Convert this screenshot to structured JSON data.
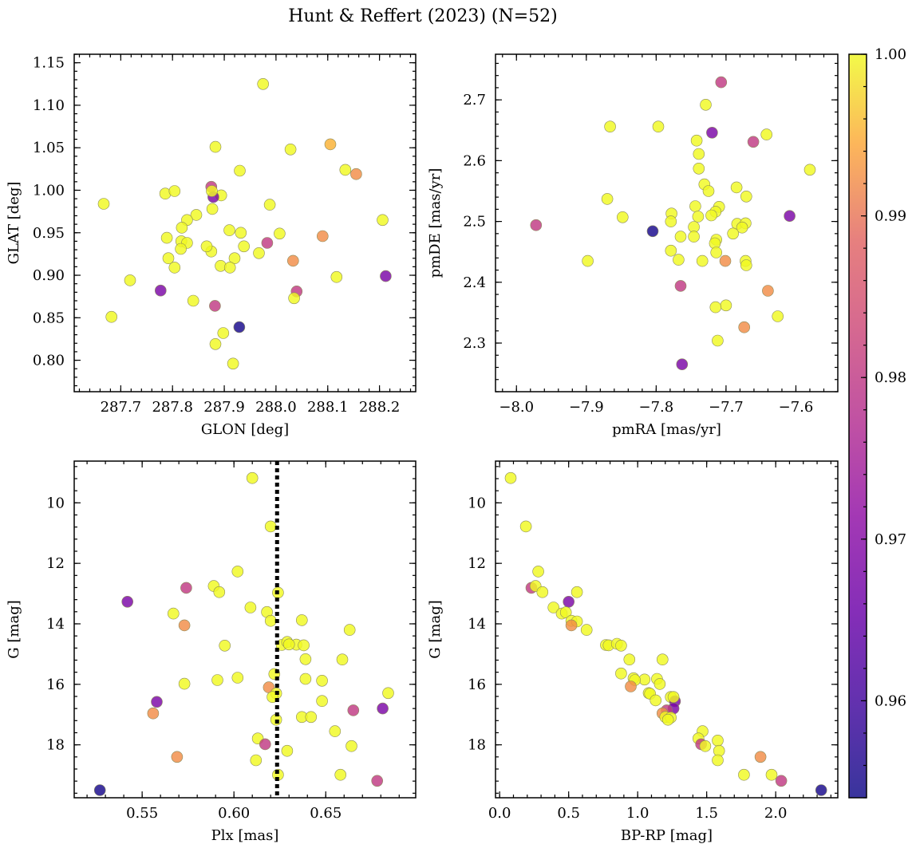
{
  "chart_data": {
    "type": "scatter",
    "title": "Hunt & Reffert (2023) (N=52)",
    "colorbar": {
      "min": 0.954,
      "max": 1.0,
      "ticks": [
        0.96,
        0.97,
        0.98,
        0.99,
        1.0
      ],
      "ticklabels": [
        "0.96",
        "0.97",
        "0.98",
        "0.99",
        "1.00"
      ],
      "colormap": "plasma"
    },
    "panels": [
      {
        "id": "sky",
        "xlabel": "GLON [deg]",
        "ylabel": "GLAT [deg]",
        "xlim": [
          287.61,
          288.27
        ],
        "ylim": [
          0.763,
          1.16
        ],
        "xticks": [
          287.7,
          287.8,
          287.9,
          288.0,
          288.1,
          288.2
        ],
        "xticklabels": [
          "287.7",
          "287.8",
          "287.9",
          "288.0",
          "288.1",
          "288.2"
        ],
        "yticks": [
          0.8,
          0.85,
          0.9,
          0.95,
          1.0,
          1.05,
          1.1,
          1.15
        ],
        "yticklabels": [
          "0.80",
          "0.85",
          "0.90",
          "0.95",
          "1.00",
          "1.05",
          "1.10",
          "1.15"
        ],
        "points": [
          [
            287.975,
            1.125,
            1.0
          ],
          [
            287.883,
            1.051,
            1.0
          ],
          [
            288.028,
            1.048,
            1.0
          ],
          [
            287.93,
            1.023,
            1.0
          ],
          [
            288.134,
            1.024,
            1.0
          ],
          [
            287.667,
            0.984,
            1.0
          ],
          [
            287.786,
            0.996,
            1.0
          ],
          [
            287.804,
            0.999,
            1.0
          ],
          [
            287.894,
            0.994,
            1.0
          ],
          [
            288.105,
            1.054,
            0.995
          ],
          [
            288.155,
            1.019,
            0.992
          ],
          [
            287.875,
            1.004,
            0.98
          ],
          [
            287.879,
            0.992,
            0.968
          ],
          [
            287.876,
            0.999,
            1.0
          ],
          [
            287.988,
            0.983,
            1.0
          ],
          [
            287.877,
            0.978,
            1.0
          ],
          [
            287.846,
            0.971,
            1.0
          ],
          [
            287.828,
            0.965,
            1.0
          ],
          [
            287.818,
            0.956,
            1.0
          ],
          [
            287.789,
            0.944,
            1.0
          ],
          [
            287.817,
            0.94,
            1.0
          ],
          [
            287.828,
            0.938,
            1.0
          ],
          [
            287.91,
            0.953,
            1.0
          ],
          [
            287.932,
            0.95,
            1.0
          ],
          [
            288.007,
            0.949,
            1.0
          ],
          [
            288.206,
            0.965,
            1.0
          ],
          [
            288.09,
            0.946,
            0.992
          ],
          [
            287.983,
            0.938,
            0.98
          ],
          [
            287.938,
            0.934,
            1.0
          ],
          [
            287.816,
            0.931,
            1.0
          ],
          [
            287.875,
            0.928,
            1.0
          ],
          [
            287.967,
            0.926,
            1.0
          ],
          [
            287.792,
            0.92,
            1.0
          ],
          [
            287.92,
            0.92,
            1.0
          ],
          [
            287.804,
            0.909,
            1.0
          ],
          [
            287.893,
            0.911,
            1.0
          ],
          [
            287.911,
            0.909,
            1.0
          ],
          [
            288.033,
            0.917,
            0.992
          ],
          [
            288.117,
            0.898,
            1.0
          ],
          [
            287.718,
            0.894,
            1.0
          ],
          [
            288.212,
            0.899,
            0.968
          ],
          [
            287.777,
            0.882,
            0.968
          ],
          [
            288.04,
            0.881,
            0.98
          ],
          [
            287.84,
            0.87,
            1.0
          ],
          [
            288.035,
            0.873,
            1.0
          ],
          [
            287.882,
            0.864,
            0.98
          ],
          [
            287.682,
            0.851,
            1.0
          ],
          [
            287.929,
            0.839,
            0.955
          ],
          [
            287.898,
            0.832,
            1.0
          ],
          [
            287.883,
            0.819,
            1.0
          ],
          [
            287.917,
            0.796,
            1.0
          ],
          [
            287.866,
            0.934,
            1.0
          ]
        ]
      },
      {
        "id": "pm",
        "xlabel": "pmRA [mas/yr]",
        "ylabel": "pmDE [mas/yr]",
        "xlim": [
          -8.03,
          -7.54
        ],
        "ylim": [
          2.22,
          2.775
        ],
        "xticks": [
          -8.0,
          -7.9,
          -7.8,
          -7.7,
          -7.6
        ],
        "xticklabels": [
          "−8.0",
          "−7.9",
          "−7.8",
          "−7.7",
          "−7.6"
        ],
        "yticks": [
          2.3,
          2.4,
          2.5,
          2.6,
          2.7
        ],
        "yticklabels": [
          "2.3",
          "2.4",
          "2.5",
          "2.6",
          "2.7"
        ],
        "points": [
          [
            -7.707,
            2.729,
            0.98
          ],
          [
            -7.729,
            2.692,
            1.0
          ],
          [
            -7.866,
            2.656,
            1.0
          ],
          [
            -7.797,
            2.656,
            1.0
          ],
          [
            -7.72,
            2.646,
            0.968
          ],
          [
            -7.642,
            2.643,
            1.0
          ],
          [
            -7.742,
            2.633,
            1.0
          ],
          [
            -7.661,
            2.631,
            0.98
          ],
          [
            -7.739,
            2.611,
            1.0
          ],
          [
            -7.58,
            2.585,
            1.0
          ],
          [
            -7.739,
            2.587,
            1.0
          ],
          [
            -7.731,
            2.561,
            1.0
          ],
          [
            -7.685,
            2.556,
            1.0
          ],
          [
            -7.725,
            2.55,
            1.0
          ],
          [
            -7.87,
            2.537,
            1.0
          ],
          [
            -7.671,
            2.541,
            1.0
          ],
          [
            -7.744,
            2.525,
            1.0
          ],
          [
            -7.71,
            2.524,
            1.0
          ],
          [
            -7.778,
            2.513,
            1.0
          ],
          [
            -7.715,
            2.516,
            1.0
          ],
          [
            -7.848,
            2.507,
            1.0
          ],
          [
            -7.74,
            2.508,
            1.0
          ],
          [
            -7.609,
            2.509,
            0.968
          ],
          [
            -7.779,
            2.5,
            1.0
          ],
          [
            -7.746,
            2.491,
            1.0
          ],
          [
            -7.684,
            2.496,
            1.0
          ],
          [
            -7.672,
            2.497,
            1.0
          ],
          [
            -7.677,
            2.49,
            1.0
          ],
          [
            -7.972,
            2.494,
            0.98
          ],
          [
            -7.805,
            2.484,
            0.955
          ],
          [
            -7.765,
            2.475,
            1.0
          ],
          [
            -7.746,
            2.475,
            1.0
          ],
          [
            -7.714,
            2.47,
            1.0
          ],
          [
            -7.716,
            2.464,
            1.0
          ],
          [
            -7.779,
            2.452,
            1.0
          ],
          [
            -7.714,
            2.449,
            1.0
          ],
          [
            -7.898,
            2.435,
            1.0
          ],
          [
            -7.768,
            2.437,
            1.0
          ],
          [
            -7.734,
            2.435,
            1.0
          ],
          [
            -7.701,
            2.435,
            0.992
          ],
          [
            -7.672,
            2.435,
            1.0
          ],
          [
            -7.671,
            2.428,
            1.0
          ],
          [
            -7.765,
            2.394,
            0.98
          ],
          [
            -7.64,
            2.386,
            0.992
          ],
          [
            -7.7,
            2.362,
            1.0
          ],
          [
            -7.715,
            2.359,
            1.0
          ],
          [
            -7.626,
            2.344,
            1.0
          ],
          [
            -7.674,
            2.326,
            0.992
          ],
          [
            -7.712,
            2.304,
            1.0
          ],
          [
            -7.763,
            2.265,
            0.968
          ],
          [
            -7.721,
            2.51,
            1.0
          ],
          [
            -7.69,
            2.48,
            1.0
          ]
        ]
      },
      {
        "id": "plx",
        "xlabel": "Plx [mas]",
        "ylabel": "G [mag]",
        "xlim": [
          0.513,
          0.699
        ],
        "ylim": [
          19.75,
          8.62
        ],
        "xticks": [
          0.55,
          0.6,
          0.65
        ],
        "xticklabels": [
          "0.55",
          "0.60",
          "0.65"
        ],
        "yticks": [
          10,
          12,
          14,
          16,
          18
        ],
        "yticklabels": [
          "10",
          "12",
          "14",
          "16",
          "18"
        ],
        "vline": 0.6235,
        "points": [
          [
            0.61,
            9.18,
            1.0
          ],
          [
            0.62,
            10.78,
            1.0
          ],
          [
            0.602,
            12.27,
            1.0
          ],
          [
            0.589,
            12.75,
            1.0
          ],
          [
            0.592,
            12.95,
            1.0
          ],
          [
            0.574,
            12.81,
            0.98
          ],
          [
            0.624,
            12.97,
            1.0
          ],
          [
            0.542,
            13.27,
            0.968
          ],
          [
            0.609,
            13.46,
            1.0
          ],
          [
            0.618,
            13.61,
            1.0
          ],
          [
            0.567,
            13.66,
            1.0
          ],
          [
            0.62,
            13.9,
            1.0
          ],
          [
            0.637,
            13.88,
            1.0
          ],
          [
            0.573,
            14.05,
            0.992
          ],
          [
            0.663,
            14.2,
            1.0
          ],
          [
            0.626,
            14.7,
            1.0
          ],
          [
            0.629,
            14.6,
            1.0
          ],
          [
            0.634,
            14.69,
            1.0
          ],
          [
            0.638,
            14.71,
            1.0
          ],
          [
            0.595,
            14.72,
            1.0
          ],
          [
            0.639,
            15.17,
            1.0
          ],
          [
            0.659,
            15.18,
            1.0
          ],
          [
            0.622,
            15.66,
            1.0
          ],
          [
            0.602,
            15.78,
            1.0
          ],
          [
            0.591,
            15.86,
            1.0
          ],
          [
            0.639,
            15.82,
            1.0
          ],
          [
            0.648,
            15.88,
            1.0
          ],
          [
            0.573,
            15.98,
            1.0
          ],
          [
            0.619,
            16.1,
            0.992
          ],
          [
            0.623,
            16.3,
            1.0
          ],
          [
            0.621,
            16.42,
            1.0
          ],
          [
            0.648,
            16.55,
            1.0
          ],
          [
            0.684,
            16.29,
            1.0
          ],
          [
            0.558,
            16.58,
            0.968
          ],
          [
            0.681,
            16.8,
            0.968
          ],
          [
            0.665,
            16.86,
            0.98
          ],
          [
            0.556,
            16.96,
            0.992
          ],
          [
            0.637,
            17.08,
            1.0
          ],
          [
            0.642,
            17.08,
            1.0
          ],
          [
            0.623,
            17.17,
            1.0
          ],
          [
            0.655,
            17.55,
            1.0
          ],
          [
            0.613,
            17.79,
            1.0
          ],
          [
            0.617,
            17.98,
            0.98
          ],
          [
            0.664,
            18.04,
            1.0
          ],
          [
            0.629,
            18.2,
            1.0
          ],
          [
            0.612,
            18.51,
            1.0
          ],
          [
            0.569,
            18.4,
            0.992
          ],
          [
            0.658,
            18.99,
            1.0
          ],
          [
            0.624,
            18.99,
            1.0
          ],
          [
            0.678,
            19.19,
            0.98
          ],
          [
            0.527,
            19.5,
            0.955
          ],
          [
            0.63,
            14.68,
            1.0
          ]
        ]
      },
      {
        "id": "cmd",
        "xlabel": "BP-RP [mag]",
        "ylabel": "G [mag]",
        "xlim": [
          -0.03,
          2.45
        ],
        "ylim": [
          19.75,
          8.62
        ],
        "xticks": [
          0.0,
          0.5,
          1.0,
          1.5,
          2.0
        ],
        "xticklabels": [
          "0.0",
          "0.5",
          "1.0",
          "1.5",
          "2.0"
        ],
        "yticks": [
          10,
          12,
          14,
          16,
          18
        ],
        "yticklabels": [
          "10",
          "12",
          "14",
          "16",
          "18"
        ],
        "points": [
          [
            0.08,
            9.18,
            1.0
          ],
          [
            0.19,
            10.78,
            1.0
          ],
          [
            0.28,
            12.27,
            1.0
          ],
          [
            0.23,
            12.81,
            0.98
          ],
          [
            0.26,
            12.75,
            1.0
          ],
          [
            0.31,
            12.95,
            1.0
          ],
          [
            0.56,
            12.95,
            1.0
          ],
          [
            0.5,
            13.27,
            0.968
          ],
          [
            0.39,
            13.46,
            1.0
          ],
          [
            0.45,
            13.66,
            1.0
          ],
          [
            0.48,
            13.62,
            1.0
          ],
          [
            0.52,
            13.9,
            1.0
          ],
          [
            0.56,
            13.92,
            1.0
          ],
          [
            0.52,
            14.05,
            0.992
          ],
          [
            0.63,
            14.2,
            1.0
          ],
          [
            0.77,
            14.7,
            1.0
          ],
          [
            0.79,
            14.71,
            1.0
          ],
          [
            0.85,
            14.66,
            1.0
          ],
          [
            0.88,
            14.72,
            1.0
          ],
          [
            0.94,
            15.18,
            1.0
          ],
          [
            1.18,
            15.18,
            1.0
          ],
          [
            0.88,
            15.64,
            1.0
          ],
          [
            0.97,
            15.8,
            1.0
          ],
          [
            1.05,
            15.84,
            1.0
          ],
          [
            1.14,
            15.82,
            1.0
          ],
          [
            0.98,
            15.86,
            1.0
          ],
          [
            1.16,
            15.99,
            1.0
          ],
          [
            0.95,
            16.07,
            0.992
          ],
          [
            1.08,
            16.29,
            1.0
          ],
          [
            1.09,
            16.31,
            1.0
          ],
          [
            1.13,
            16.53,
            1.0
          ],
          [
            1.24,
            16.42,
            1.0
          ],
          [
            1.27,
            16.56,
            0.968
          ],
          [
            1.26,
            16.8,
            0.968
          ],
          [
            1.21,
            16.86,
            0.98
          ],
          [
            1.18,
            16.96,
            0.992
          ],
          [
            1.2,
            17.08,
            1.0
          ],
          [
            1.24,
            17.1,
            1.0
          ],
          [
            1.22,
            17.17,
            1.0
          ],
          [
            1.47,
            17.55,
            1.0
          ],
          [
            1.44,
            17.79,
            1.0
          ],
          [
            1.46,
            17.98,
            0.98
          ],
          [
            1.49,
            18.04,
            1.0
          ],
          [
            1.58,
            17.86,
            1.0
          ],
          [
            1.59,
            18.2,
            1.0
          ],
          [
            1.58,
            18.51,
            1.0
          ],
          [
            1.89,
            18.4,
            0.992
          ],
          [
            1.77,
            18.99,
            1.0
          ],
          [
            1.97,
            18.99,
            1.0
          ],
          [
            2.04,
            19.19,
            0.98
          ],
          [
            2.33,
            19.5,
            0.955
          ],
          [
            1.26,
            16.42,
            1.0
          ]
        ]
      }
    ]
  }
}
